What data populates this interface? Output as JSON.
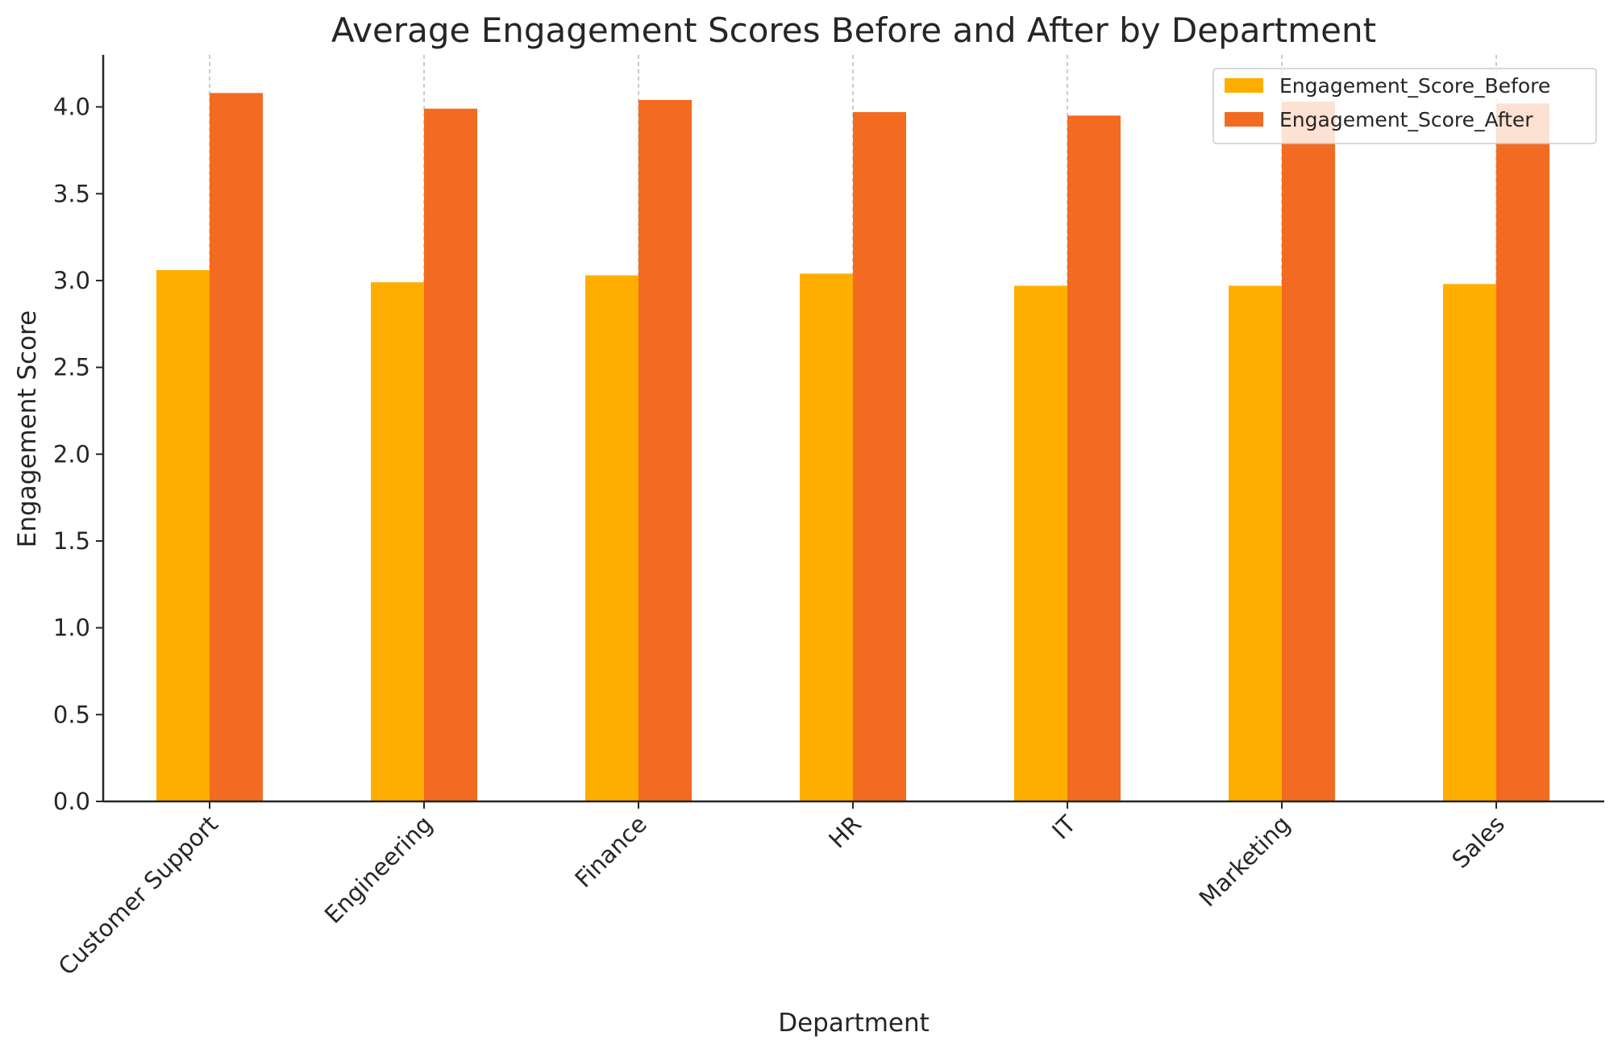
{
  "chart_data": {
    "type": "bar",
    "title": "Average Engagement Scores Before and After by Department",
    "xlabel": "Department",
    "ylabel": "Engagement Score",
    "categories": [
      "Customer Support",
      "Engineering",
      "Finance",
      "HR",
      "IT",
      "Marketing",
      "Sales"
    ],
    "series": [
      {
        "name": "Engagement_Score_Before",
        "color": "#FFAE00",
        "values": [
          3.06,
          2.99,
          3.03,
          3.04,
          2.97,
          2.97,
          2.98
        ]
      },
      {
        "name": "Engagement_Score_After",
        "color": "#F26B21",
        "values": [
          4.08,
          3.99,
          4.04,
          3.97,
          3.95,
          4.03,
          4.02
        ]
      }
    ],
    "ylim": [
      0,
      4.3
    ],
    "yticks": [
      "0.0",
      "0.5",
      "1.0",
      "1.5",
      "2.0",
      "2.5",
      "3.0",
      "3.5",
      "4.0"
    ],
    "grid": "vertical dashed at category ticks",
    "legend_position": "top-right"
  }
}
